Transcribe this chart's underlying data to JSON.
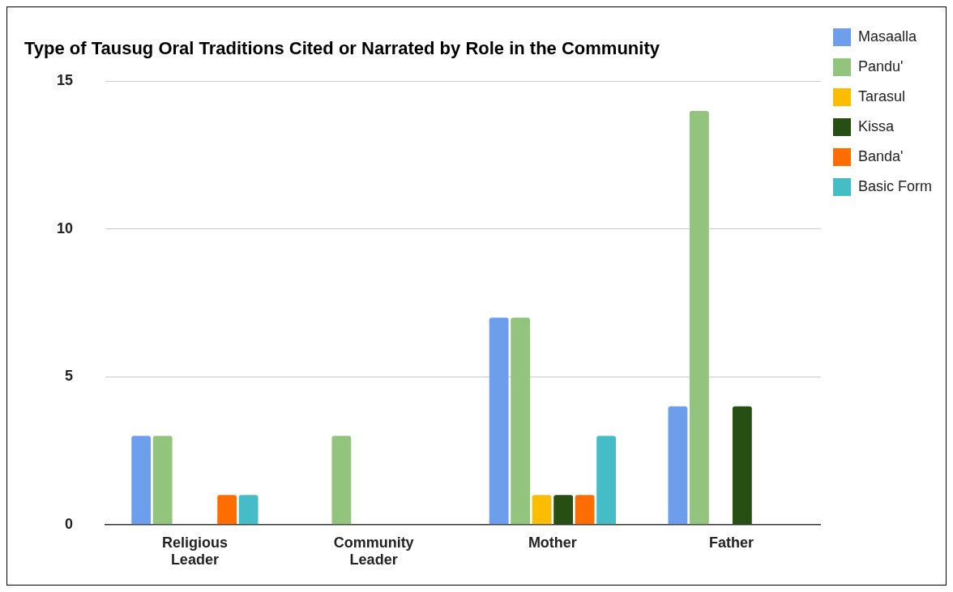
{
  "chart_data": {
    "type": "bar",
    "title": "Type of Tausug Oral Traditions Cited or Narrated by Role in the Community",
    "categories": [
      "Religious Leader",
      "Community Leader",
      "Mother",
      "Father"
    ],
    "series": [
      {
        "name": "Masaalla",
        "color": "#6d9eeb",
        "values": [
          3,
          0,
          7,
          4
        ]
      },
      {
        "name": "Pandu'",
        "color": "#93c47d",
        "values": [
          3,
          3,
          7,
          14
        ]
      },
      {
        "name": "Tarasul",
        "color": "#fbbc04",
        "values": [
          0,
          0,
          1,
          0
        ]
      },
      {
        "name": "Kissa",
        "color": "#274e13",
        "values": [
          0,
          0,
          1,
          4
        ]
      },
      {
        "name": "Banda'",
        "color": "#ff6d01",
        "values": [
          1,
          0,
          1,
          0
        ]
      },
      {
        "name": "Basic Form",
        "color": "#46bdc6",
        "values": [
          1,
          0,
          3,
          0
        ]
      }
    ],
    "ylim": [
      0,
      15
    ],
    "yticks": [
      0,
      5,
      10,
      15
    ],
    "grid": "y",
    "legend": "right"
  }
}
